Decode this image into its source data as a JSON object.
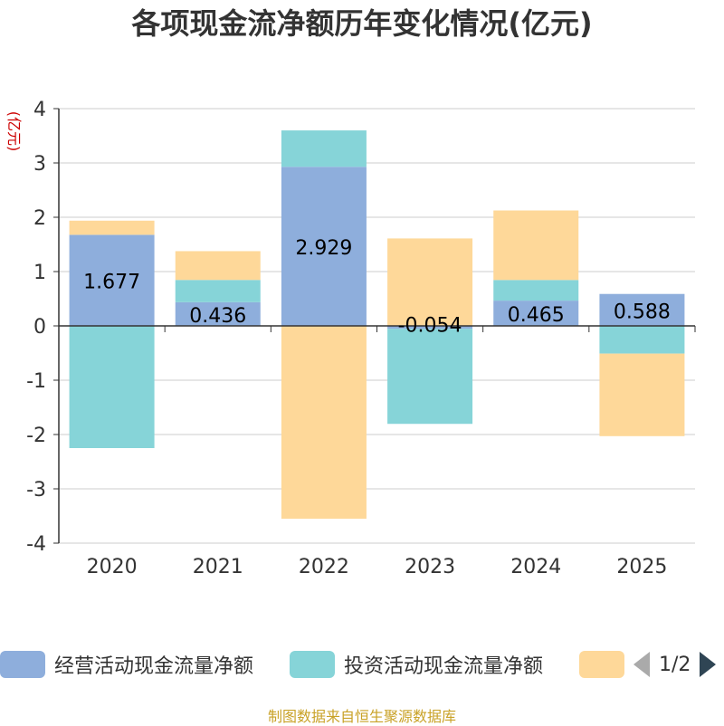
{
  "title": "各项现金流净额历年变化情况(亿元)",
  "unit_label": "(亿元)",
  "source": "制图数据来自恒生聚源数据库",
  "legend": {
    "items": [
      {
        "label": "经营活动现金流量净额",
        "color": "#8eaedc"
      },
      {
        "label": "投资活动现金流量净额",
        "color": "#86d4d8"
      },
      {
        "label": "",
        "color": "#fed899"
      }
    ],
    "pager": "1/2"
  },
  "chart_data": {
    "type": "bar",
    "stacked": true,
    "categories": [
      "2020",
      "2021",
      "2022",
      "2023",
      "2024",
      "2025"
    ],
    "ylim": [
      -4,
      4
    ],
    "yticks": [
      "-4",
      "-3",
      "-2",
      "-1",
      "0",
      "1",
      "2",
      "3",
      "4"
    ],
    "grid": true,
    "legend_position": "bottom",
    "series": [
      {
        "name": "经营活动现金流量净额",
        "color": "#8eaedc",
        "values": [
          1.677,
          0.436,
          2.929,
          -0.054,
          0.465,
          0.588
        ],
        "labels": [
          "1.677",
          "0.436",
          "2.929",
          "-0.054",
          "0.465",
          "0.588"
        ]
      },
      {
        "name": "投资活动现金流量净额",
        "color": "#86d4d8",
        "values": [
          -2.25,
          0.41,
          0.67,
          -1.75,
          0.38,
          -0.51
        ]
      },
      {
        "color": "#fed899",
        "values": [
          0.26,
          0.53,
          -3.55,
          1.61,
          1.28,
          -1.52
        ]
      }
    ]
  }
}
